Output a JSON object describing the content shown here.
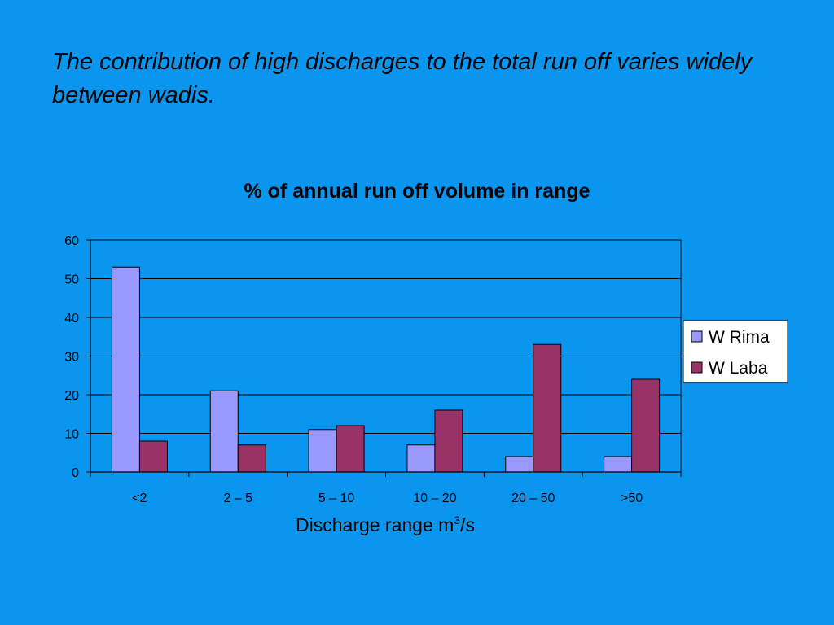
{
  "slide": {
    "title": "The contribution of high discharges to the total run off varies widely between wadis."
  },
  "chart_data": {
    "type": "bar",
    "title": "% of annual run off volume in range",
    "xlabel": "Discharge range m",
    "xlabel_superscript": "3",
    "xlabel_suffix": "/s",
    "ylabel": "",
    "categories": [
      "<2",
      "2 – 5",
      "5 – 10",
      "10 – 20",
      "20 – 50",
      ">50"
    ],
    "series": [
      {
        "name": "W  Rima",
        "values": [
          53,
          21,
          11,
          7,
          4,
          4
        ],
        "color": "#9999ff"
      },
      {
        "name": "W  Laba",
        "values": [
          8,
          7,
          12,
          16,
          33,
          24
        ],
        "color": "#993366"
      }
    ],
    "ylim": [
      0,
      60
    ],
    "yticks": [
      0,
      10,
      20,
      30,
      40,
      50,
      60
    ],
    "grid": true,
    "legend": "right",
    "plot_background": "#0a96ef"
  }
}
